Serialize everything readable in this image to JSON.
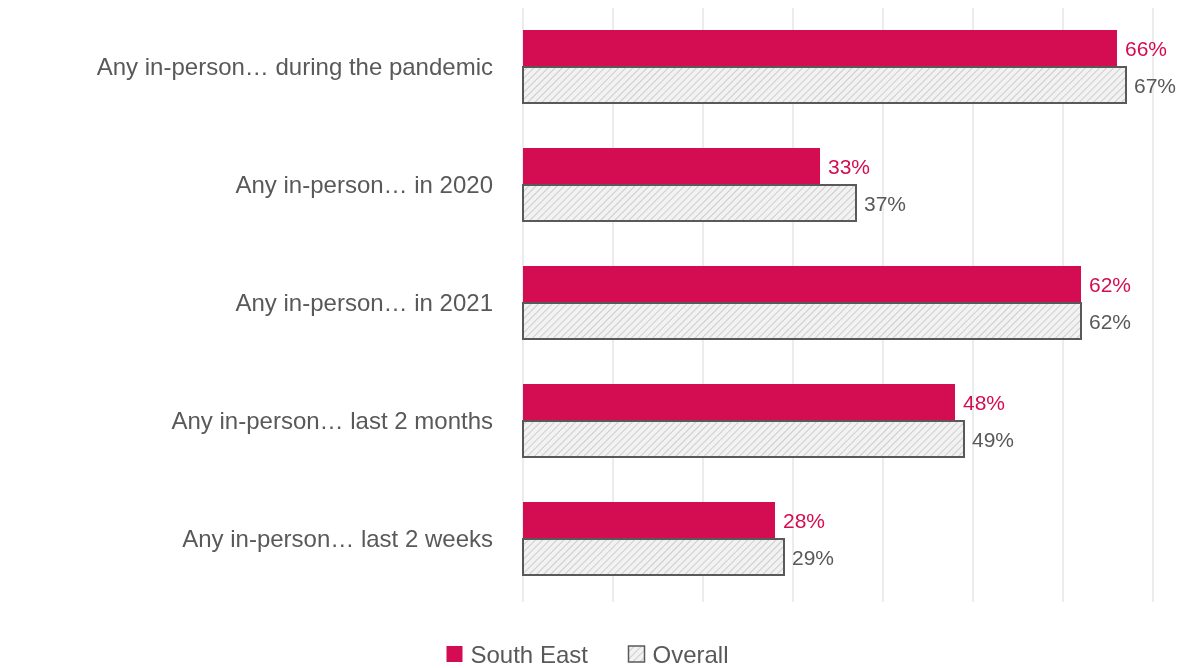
{
  "chart_data": {
    "type": "bar",
    "orientation": "horizontal",
    "categories": [
      "Any in-person… during the pandemic",
      "Any in-person… in 2020",
      "Any in-person… in 2021",
      "Any in-person… last 2 months",
      "Any in-person… last 2 weeks"
    ],
    "series": [
      {
        "name": "South East",
        "color": "#d40c52",
        "values": [
          66,
          33,
          62,
          48,
          28
        ],
        "value_labels": [
          "66%",
          "33%",
          "62%",
          "48%",
          "28%"
        ]
      },
      {
        "name": "Overall",
        "color": "#595959",
        "values": [
          67,
          37,
          62,
          49,
          29
        ],
        "value_labels": [
          "67%",
          "37%",
          "62%",
          "49%",
          "29%"
        ]
      }
    ],
    "xlim": [
      0,
      70
    ],
    "xticks": [
      {
        "value": 0,
        "label": null
      },
      {
        "value": 10,
        "label": null
      },
      {
        "value": 20,
        "label": null
      },
      {
        "value": 30,
        "label": null
      },
      {
        "value": 40,
        "label": null
      },
      {
        "value": 50,
        "label": null
      },
      {
        "value": 60,
        "label": null
      },
      {
        "value": 70,
        "label": null
      }
    ],
    "grid": "x",
    "legend": "bottom",
    "tick_labels": "y"
  }
}
